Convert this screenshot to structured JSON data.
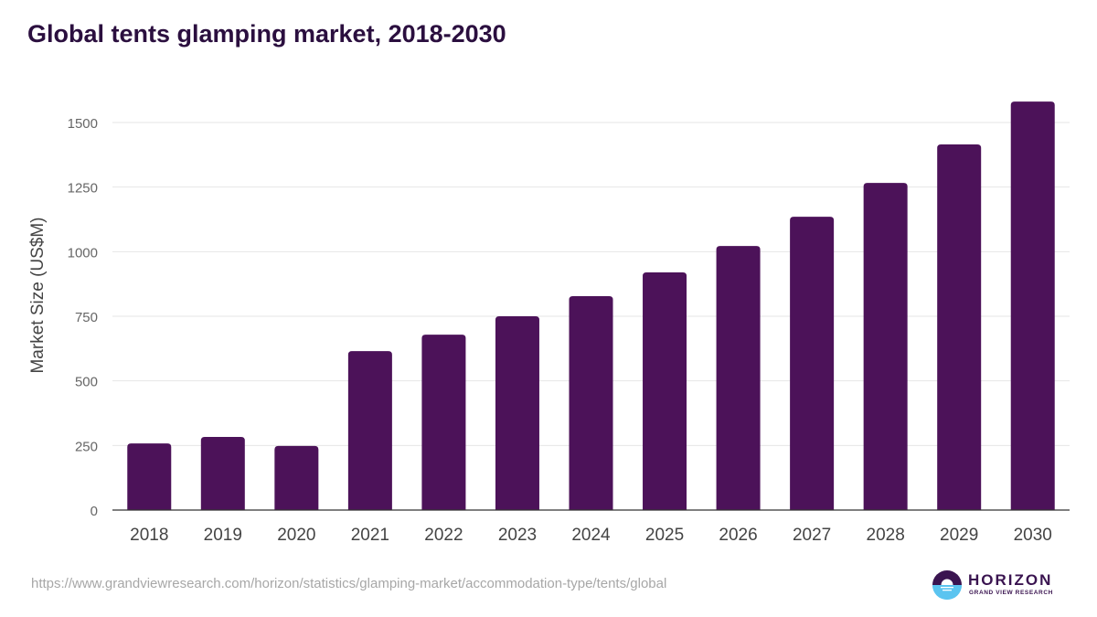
{
  "chart_data": {
    "type": "bar",
    "title": "Global tents glamping market, 2018-2030",
    "xlabel": "",
    "ylabel": "Market Size (US$M)",
    "categories": [
      "2018",
      "2019",
      "2020",
      "2021",
      "2022",
      "2023",
      "2024",
      "2025",
      "2026",
      "2027",
      "2028",
      "2029",
      "2030"
    ],
    "values": [
      258,
      283,
      248,
      615,
      679,
      750,
      828,
      920,
      1022,
      1135,
      1266,
      1415,
      1581
    ],
    "ylim": [
      0,
      1600
    ],
    "yticks": [
      0,
      250,
      500,
      750,
      1000,
      1250,
      1500
    ],
    "grid": true,
    "legend": "none",
    "bar_color": "#4c1259"
  },
  "footer": {
    "source_url": "https://www.grandviewresearch.com/horizon/statistics/glamping-market/accommodation-type/tents/global",
    "logo_name": "HORIZON",
    "logo_sub": "GRAND VIEW RESEARCH"
  }
}
